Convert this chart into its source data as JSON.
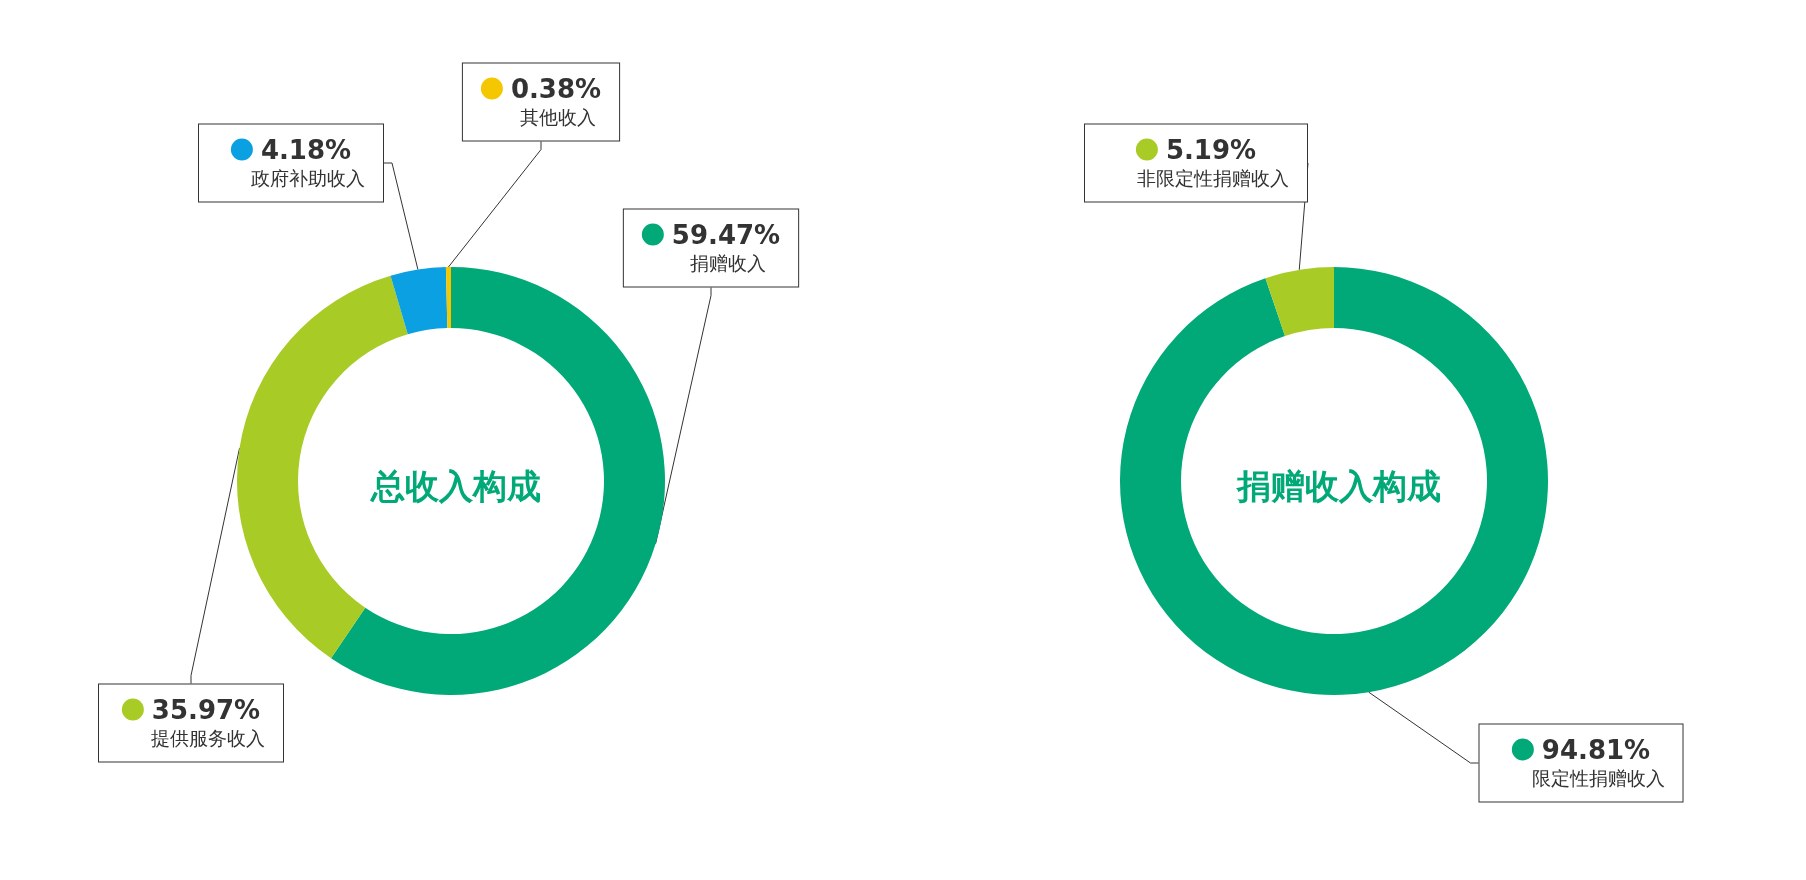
{
  "chart_data": [
    {
      "type": "donut",
      "title": "总收入构成",
      "categories": [
        "捐赠收入",
        "提供服务收入",
        "政府补助收入",
        "其他收入"
      ],
      "values": [
        59.47,
        35.97,
        4.18,
        0.38
      ],
      "colors": [
        "#00a977",
        "#a8cb25",
        "#0ba0e2",
        "#f4c700"
      ],
      "value_labels": [
        "59.47%",
        "35.97%",
        "4.18%",
        "0.38%"
      ],
      "legend": "left"
    },
    {
      "type": "donut",
      "title": "捐赠收入构成",
      "categories": [
        "限定性捐赠收入",
        "非限定性捐赠收入"
      ],
      "values": [
        94.81,
        5.19
      ],
      "colors": [
        "#00a977",
        "#a8cb25"
      ],
      "value_labels": [
        "94.81%",
        "5.19%"
      ],
      "legend": "right"
    }
  ]
}
